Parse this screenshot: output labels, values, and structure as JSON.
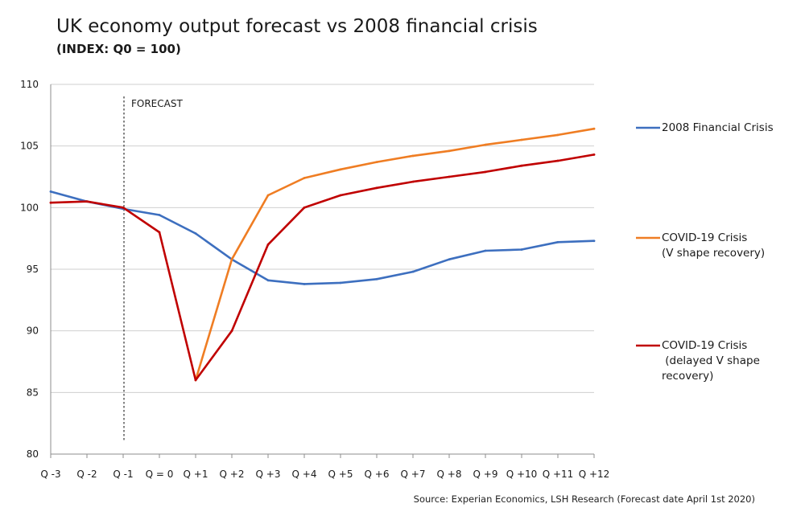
{
  "chart_data": {
    "type": "line",
    "title": "UK economy output forecast vs 2008 financial crisis",
    "subtitle": "(INDEX: Q0 = 100)",
    "categories": [
      "Q -3",
      "Q -2",
      "Q -1",
      "Q = 0",
      "Q +1",
      "Q +2",
      "Q +3",
      "Q +4",
      "Q +5",
      "Q +6",
      "Q +7",
      "Q +8",
      "Q +9",
      "Q +10",
      "Q +11",
      "Q +12"
    ],
    "ylim": [
      80,
      110
    ],
    "yticks": [
      80,
      85,
      90,
      95,
      100,
      105,
      110
    ],
    "grid": true,
    "annotation": {
      "label": "FORECAST",
      "at_category_index": 2
    },
    "series": [
      {
        "name": "2008 Financial Crisis",
        "legend_lines": [
          "2008 Financial Crisis"
        ],
        "color": "#3d6fbf",
        "values": [
          101.3,
          100.5,
          99.9,
          99.4,
          97.9,
          95.8,
          94.1,
          93.8,
          93.9,
          94.2,
          94.8,
          95.8,
          96.5,
          96.6,
          97.2,
          97.3
        ]
      },
      {
        "name": "COVID-19 Crisis (V shape recovery)",
        "legend_lines": [
          "COVID-19 Crisis",
          "(V shape recovery)"
        ],
        "color": "#ef7d23",
        "values": [
          null,
          null,
          null,
          null,
          86.0,
          95.8,
          101.0,
          102.4,
          103.1,
          103.7,
          104.2,
          104.6,
          105.1,
          105.5,
          105.9,
          106.4
        ]
      },
      {
        "name": "COVID-19 Crisis (delayed V shape recovery)",
        "legend_lines": [
          "COVID-19 Crisis",
          " (delayed V shape",
          "recovery)"
        ],
        "color": "#c00000",
        "values": [
          100.4,
          100.5,
          100.0,
          98.0,
          86.0,
          90.0,
          97.0,
          100.0,
          101.0,
          101.6,
          102.1,
          102.5,
          102.9,
          103.4,
          103.8,
          104.3
        ]
      }
    ],
    "legend_position": "right"
  },
  "source": "Source: Experian Economics, LSH Research (Forecast date April 1st 2020)"
}
